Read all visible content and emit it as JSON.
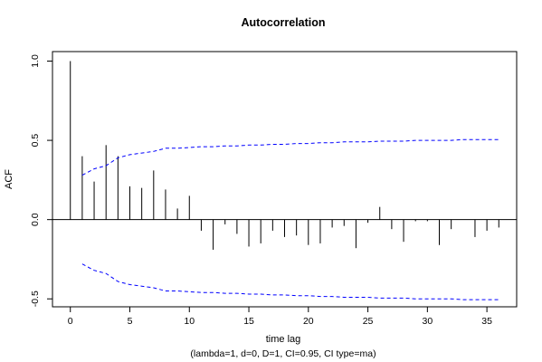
{
  "chart_data": {
    "type": "bar",
    "title": "Autocorrelation",
    "xlabel": "time lag",
    "subtitle": "(lambda=1, d=0, D=1, CI=0.95, CI type=ma)",
    "ylabel": "ACF",
    "xlim": [
      -1.5,
      37.5
    ],
    "ylim": [
      -0.55,
      1.06
    ],
    "x_ticks": [
      0,
      5,
      10,
      15,
      20,
      25,
      30,
      35
    ],
    "y_ticks": [
      -0.5,
      0.0,
      0.5,
      1.0
    ],
    "y_tick_labels": [
      "-0.5",
      "0.0",
      "0.5",
      "1.0"
    ],
    "zero_line": true,
    "series": [
      {
        "type": "spikes",
        "color": "#000000",
        "x": [
          0,
          1,
          2,
          3,
          4,
          5,
          6,
          7,
          8,
          9,
          10,
          11,
          12,
          13,
          14,
          15,
          16,
          17,
          18,
          19,
          20,
          21,
          22,
          23,
          24,
          25,
          26,
          27,
          28,
          29,
          30,
          31,
          32,
          33,
          34,
          35,
          36
        ],
        "values": [
          1.0,
          0.4,
          0.24,
          0.47,
          0.4,
          0.21,
          0.2,
          0.31,
          0.19,
          0.07,
          0.15,
          -0.07,
          -0.19,
          -0.03,
          -0.09,
          -0.17,
          -0.15,
          -0.07,
          -0.11,
          -0.1,
          -0.16,
          -0.15,
          -0.05,
          -0.04,
          -0.18,
          -0.02,
          0.08,
          -0.06,
          -0.14,
          -0.01,
          -0.01,
          -0.16,
          -0.06,
          0.0,
          -0.11,
          -0.07,
          -0.05
        ]
      }
    ],
    "confidence_band": {
      "color": "#0000ff",
      "style": "dashed",
      "x": [
        1,
        2,
        3,
        4,
        5,
        6,
        7,
        8,
        9,
        10,
        11,
        12,
        13,
        14,
        15,
        16,
        17,
        18,
        19,
        20,
        21,
        22,
        23,
        24,
        25,
        26,
        27,
        28,
        29,
        30,
        31,
        32,
        33,
        34,
        35,
        36
      ],
      "upper": [
        0.28,
        0.32,
        0.34,
        0.39,
        0.41,
        0.42,
        0.43,
        0.45,
        0.45,
        0.455,
        0.46,
        0.46,
        0.465,
        0.465,
        0.47,
        0.47,
        0.475,
        0.475,
        0.48,
        0.48,
        0.485,
        0.485,
        0.49,
        0.49,
        0.49,
        0.495,
        0.495,
        0.495,
        0.5,
        0.5,
        0.5,
        0.5,
        0.505,
        0.505,
        0.505,
        0.505
      ],
      "lower": [
        -0.28,
        -0.32,
        -0.34,
        -0.39,
        -0.41,
        -0.42,
        -0.43,
        -0.45,
        -0.45,
        -0.455,
        -0.46,
        -0.46,
        -0.465,
        -0.465,
        -0.47,
        -0.47,
        -0.475,
        -0.475,
        -0.48,
        -0.48,
        -0.485,
        -0.485,
        -0.49,
        -0.49,
        -0.49,
        -0.495,
        -0.495,
        -0.495,
        -0.5,
        -0.5,
        -0.5,
        -0.5,
        -0.505,
        -0.505,
        -0.505,
        -0.505
      ]
    }
  }
}
